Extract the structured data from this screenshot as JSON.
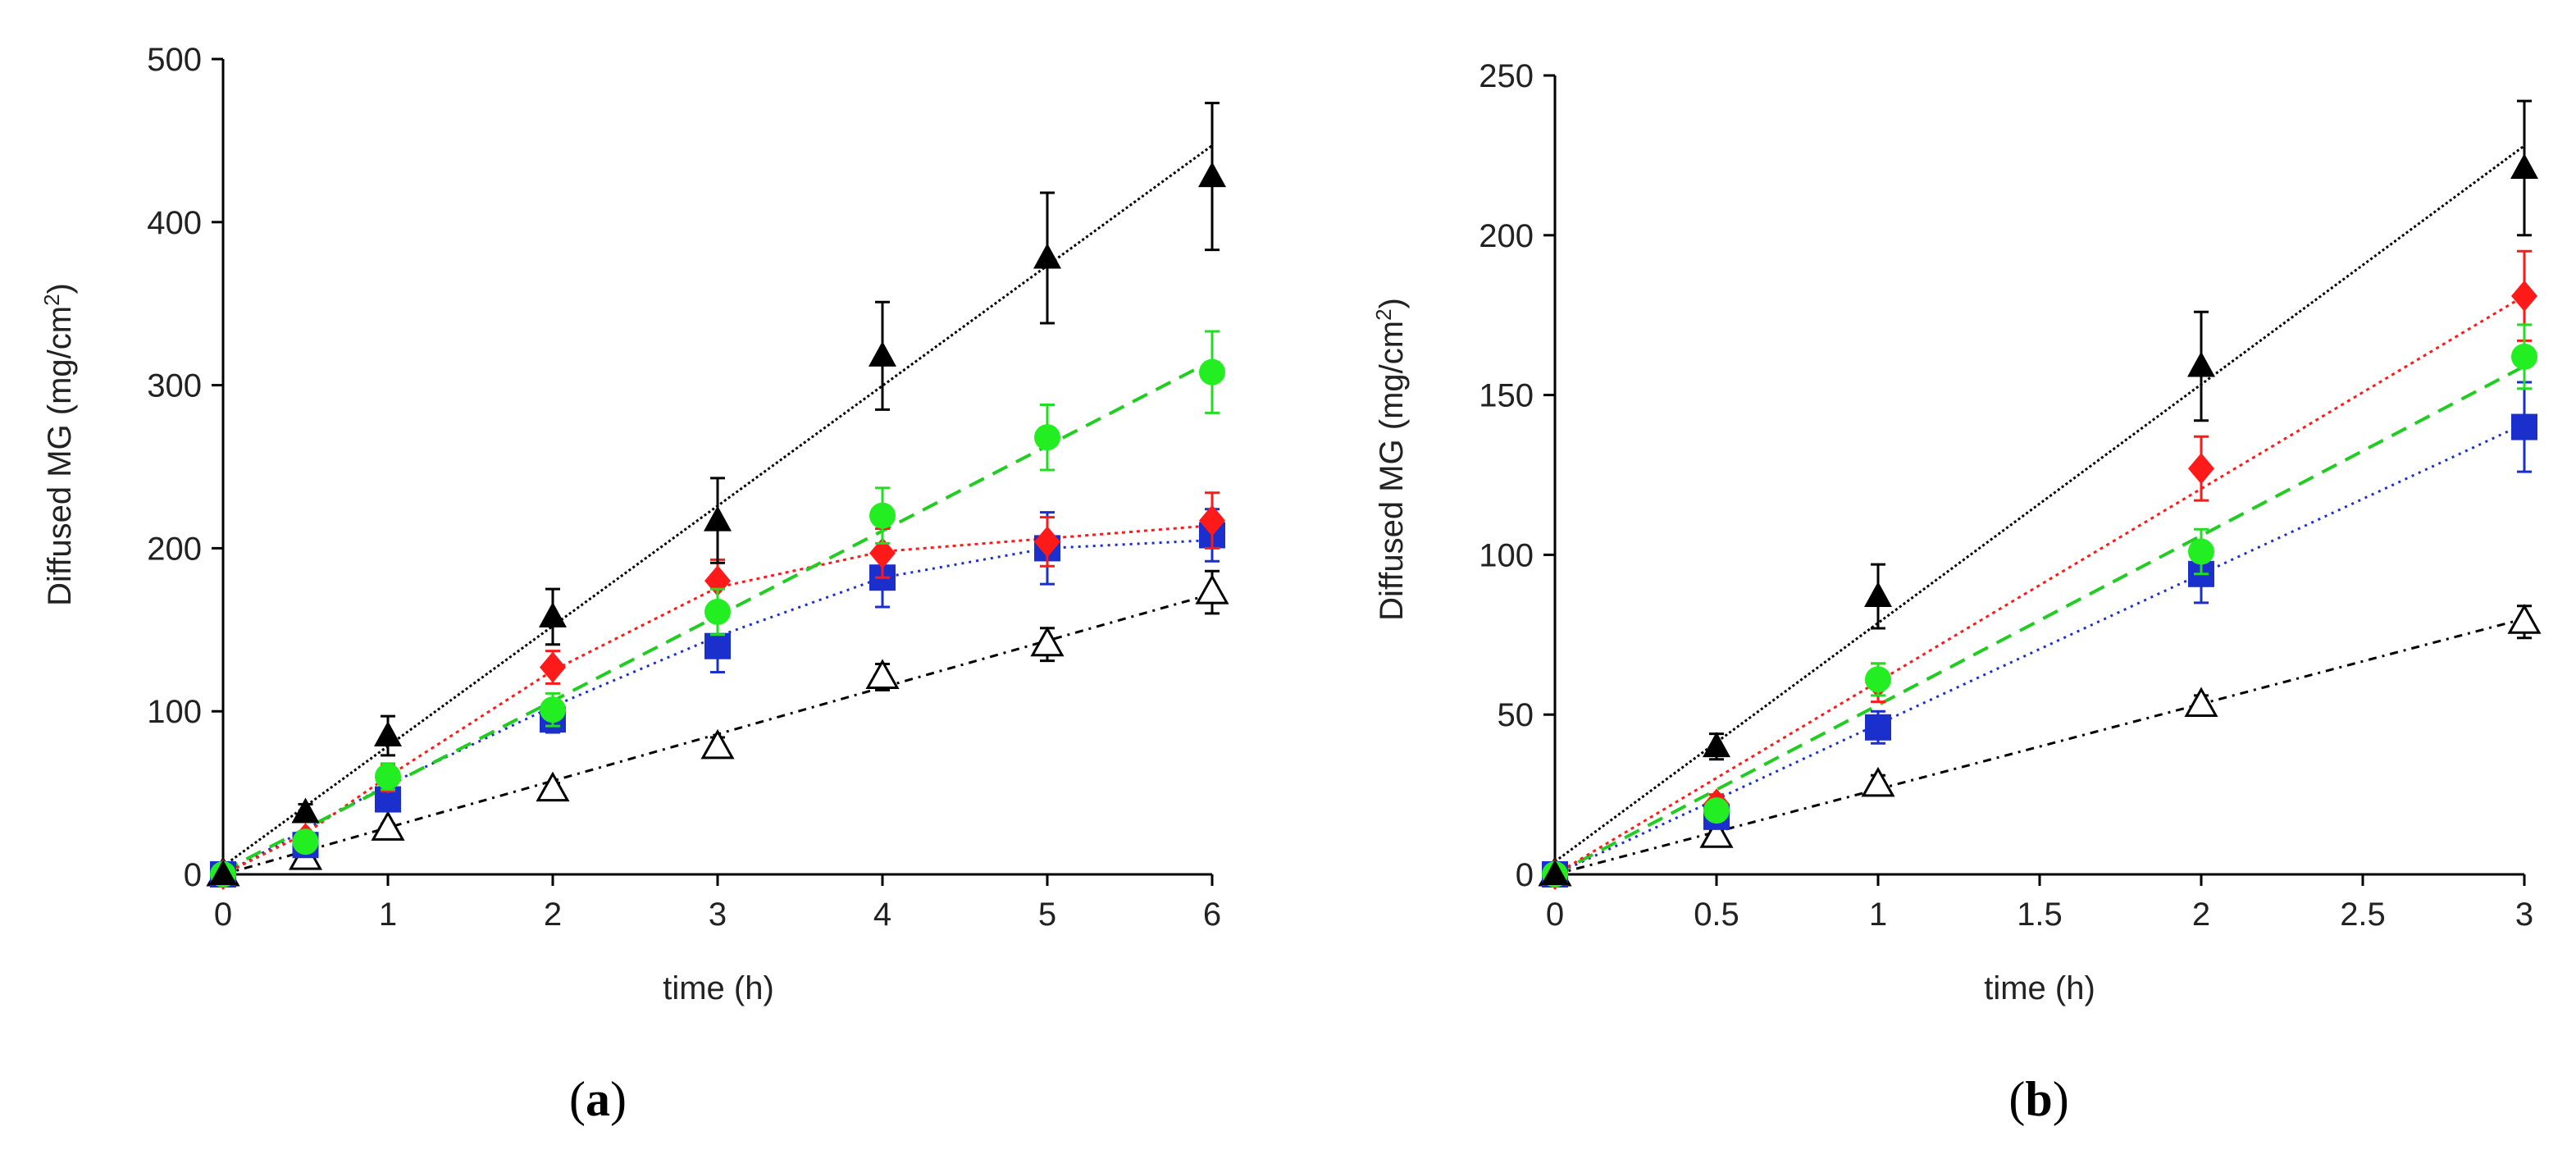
{
  "chart_data": [
    {
      "panel_label": "a",
      "type": "scatter",
      "xlabel": "time (h)",
      "ylabel": "Diffused MG (mg/cm²)",
      "ylabel_base": "Diffused MG (mg/cm",
      "ylabel_sup": "2",
      "ylabel_close": ")",
      "xlim": [
        0,
        6
      ],
      "ylim": [
        0,
        500
      ],
      "xticks": [
        "0",
        "1",
        "2",
        "3",
        "4",
        "5",
        "6"
      ],
      "yticks": [
        "0",
        "100",
        "200",
        "300",
        "400",
        "500"
      ],
      "series": [
        {
          "name": "filled-triangle",
          "marker": "triangle-filled",
          "color": "#000000",
          "fit": "line",
          "fit_style": "dotted-fine",
          "x": [
            0,
            0.5,
            1,
            2,
            3,
            4,
            5,
            6
          ],
          "y": [
            0,
            38,
            85,
            158,
            217,
            318,
            378,
            428
          ],
          "err": [
            0,
            5,
            12,
            17,
            26,
            33,
            40,
            45
          ],
          "fit_line": [
            [
              0,
              5
            ],
            [
              6,
              447
            ]
          ]
        },
        {
          "name": "green-circle",
          "marker": "circle",
          "color": "#22ee22",
          "fit": "line",
          "fit_style": "dashed",
          "x": [
            0,
            0.5,
            1,
            2,
            3,
            4,
            5,
            6
          ],
          "y": [
            0,
            20,
            60,
            101,
            161,
            220,
            268,
            308
          ],
          "err": [
            0,
            4,
            8,
            10,
            14,
            17,
            20,
            25
          ],
          "fit_line": [
            [
              0,
              2
            ],
            [
              6,
              315
            ]
          ]
        },
        {
          "name": "red-diamond",
          "marker": "diamond",
          "color": "#ff1a1a",
          "fit": "curve",
          "fit_style": "dotted-short",
          "x": [
            0,
            0.5,
            1,
            2,
            3,
            4,
            5,
            6
          ],
          "y": [
            0,
            22,
            59,
            127,
            180,
            197,
            204,
            217
          ],
          "err": [
            0,
            4,
            8,
            10,
            13,
            15,
            15,
            17
          ],
          "fit_line": [
            [
              0,
              0
            ],
            [
              0.5,
              25
            ],
            [
              1,
              60
            ],
            [
              2,
              125
            ],
            [
              3,
              176
            ],
            [
              4,
              198
            ],
            [
              5,
              206
            ],
            [
              6,
              214
            ]
          ]
        },
        {
          "name": "blue-square",
          "marker": "square",
          "color": "#1a2fcc",
          "fit": "curve",
          "fit_style": "dotted",
          "x": [
            0,
            0.5,
            1,
            2,
            3,
            4,
            5,
            6
          ],
          "y": [
            0,
            18,
            46,
            95,
            140,
            182,
            200,
            208
          ],
          "err": [
            0,
            3,
            6,
            8,
            16,
            18,
            22,
            16
          ],
          "fit_line": [
            [
              0,
              0
            ],
            [
              1,
              55
            ],
            [
              2,
              103
            ],
            [
              3,
              146
            ],
            [
              4,
              182
            ],
            [
              5,
              200
            ],
            [
              6,
              205
            ]
          ]
        },
        {
          "name": "open-triangle",
          "marker": "triangle-open",
          "color": "#000000",
          "fit": "line",
          "fit_style": "dash-dot",
          "x": [
            0,
            0.5,
            1,
            2,
            3,
            4,
            5,
            6
          ],
          "y": [
            0,
            10,
            28,
            52,
            78,
            121,
            141,
            173
          ],
          "err": [
            0,
            2,
            3,
            4,
            6,
            8,
            10,
            13
          ],
          "fit_line": [
            [
              0,
              0
            ],
            [
              6,
              172
            ]
          ]
        }
      ]
    },
    {
      "panel_label": "b",
      "type": "scatter",
      "xlabel": "time (h)",
      "ylabel": "Diffused MG (mg/cm²)",
      "ylabel_base": "Diffused MG (mg/cm",
      "ylabel_sup": "2",
      "ylabel_close": ")",
      "xlim": [
        0,
        3
      ],
      "ylim": [
        0,
        250
      ],
      "xticks": [
        "0",
        "0.5",
        "1",
        "1.5",
        "2",
        "2.5",
        "3"
      ],
      "yticks": [
        "0",
        "50",
        "100",
        "150",
        "200",
        "250"
      ],
      "series": [
        {
          "name": "filled-triangle",
          "marker": "triangle-filled",
          "color": "#000000",
          "fit": "line",
          "fit_style": "dotted-fine",
          "x": [
            0,
            0.5,
            1,
            2,
            3
          ],
          "y": [
            0,
            40,
            87,
            159,
            221
          ],
          "err": [
            0,
            4,
            10,
            17,
            21
          ],
          "fit_line": [
            [
              0,
              4
            ],
            [
              3,
              228
            ]
          ]
        },
        {
          "name": "red-diamond",
          "marker": "diamond",
          "color": "#ff1a1a",
          "fit": "line",
          "fit_style": "dotted-short",
          "x": [
            0,
            0.5,
            1,
            2,
            3
          ],
          "y": [
            0,
            22,
            60,
            127,
            181
          ],
          "err": [
            0,
            3,
            6,
            10,
            14
          ],
          "fit_line": [
            [
              0,
              0
            ],
            [
              3,
              181
            ]
          ]
        },
        {
          "name": "green-circle",
          "marker": "circle",
          "color": "#22ee22",
          "fit": "line",
          "fit_style": "dashed",
          "x": [
            0,
            0.5,
            1,
            2,
            3
          ],
          "y": [
            0,
            20,
            61,
            101,
            162
          ],
          "err": [
            0,
            3,
            5,
            7,
            10
          ],
          "fit_line": [
            [
              0,
              0
            ],
            [
              3,
              159
            ]
          ]
        },
        {
          "name": "blue-square",
          "marker": "square",
          "color": "#1a2fcc",
          "fit": "line",
          "fit_style": "dotted",
          "x": [
            0,
            0.5,
            1,
            2,
            3
          ],
          "y": [
            0,
            18,
            46,
            94,
            140
          ],
          "err": [
            0,
            3,
            5,
            9,
            14
          ],
          "fit_line": [
            [
              0,
              0
            ],
            [
              3,
              141
            ]
          ]
        },
        {
          "name": "open-triangle",
          "marker": "triangle-open",
          "color": "#000000",
          "fit": "line",
          "fit_style": "dash-dot",
          "x": [
            0,
            0.5,
            1,
            2,
            3
          ],
          "y": [
            0,
            12,
            28,
            53,
            79
          ],
          "err": [
            0,
            2,
            3,
            3,
            5
          ],
          "fit_line": [
            [
              0,
              0
            ],
            [
              3,
              80
            ]
          ]
        }
      ]
    }
  ]
}
